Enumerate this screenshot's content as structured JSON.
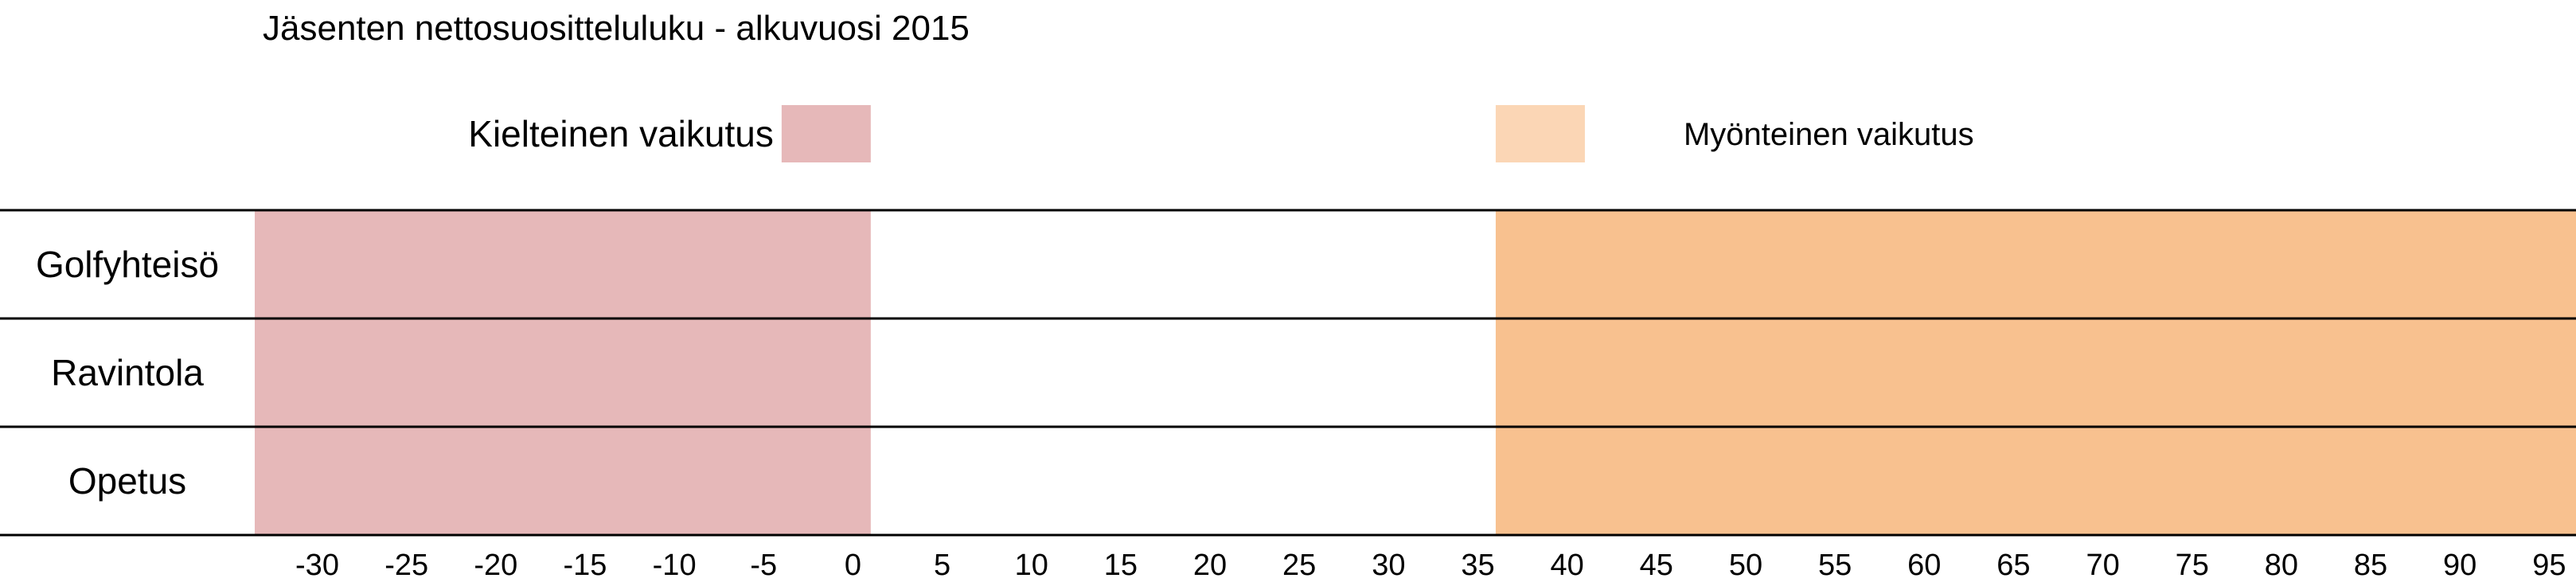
{
  "chart_data": {
    "type": "bar",
    "title": "Jäsenten nettosuositteluluku - alkuvuosi 2015",
    "xlabel": "",
    "ylabel": "",
    "xlim": [
      -33.5,
      96.5
    ],
    "x_ticks": [
      -30,
      -25,
      -20,
      -15,
      -10,
      -5,
      0,
      5,
      10,
      15,
      20,
      25,
      30,
      35,
      40,
      45,
      50,
      55,
      60,
      65,
      70,
      75,
      80,
      85,
      90,
      95
    ],
    "categories": [
      "Golfyhteisö",
      "Ravintola",
      "Opetus"
    ],
    "grid": false,
    "legend_placement": "top",
    "bands": [
      {
        "name": "Kielteinen vaikutus",
        "from": -33.5,
        "to": 1,
        "color": "#e6b8b9",
        "legend_color": "#e6b8b9"
      },
      {
        "name": "Myönteinen vaikutus",
        "from": 36,
        "to": 96.5,
        "color": "#f8c18f",
        "legend_color": "#fbd6b5"
      }
    ]
  }
}
